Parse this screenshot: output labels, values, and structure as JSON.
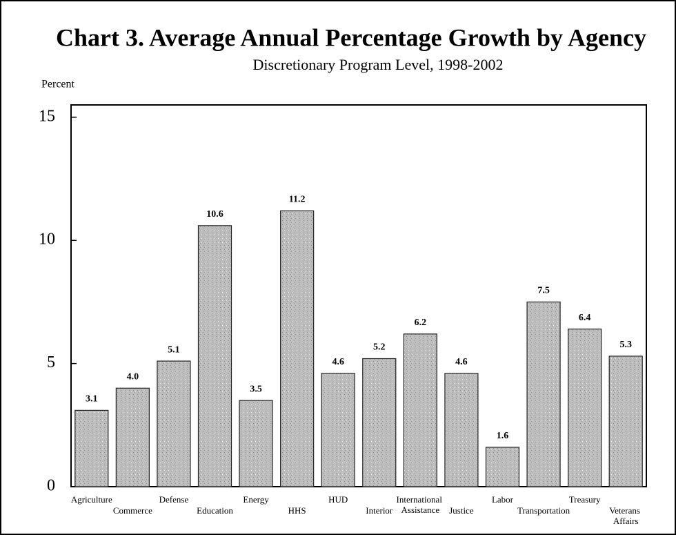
{
  "chart_data": {
    "type": "bar",
    "title": "Chart 3.  Average Annual Percentage Growth by Agency",
    "subtitle": "Discretionary Program Level, 1998-2002",
    "y_axis_label": "Percent",
    "categories": [
      "Agriculture",
      "Commerce",
      "Defense",
      "Education",
      "Energy",
      "HHS",
      "HUD",
      "Interior",
      "International Assistance",
      "Justice",
      "Labor",
      "Transportation",
      "Treasury",
      "Veterans Affairs"
    ],
    "values": [
      3.1,
      4.0,
      5.1,
      10.6,
      3.5,
      11.2,
      4.6,
      5.2,
      6.2,
      4.6,
      1.6,
      7.5,
      6.4,
      5.3
    ],
    "value_labels": [
      "3.1",
      "4.0",
      "5.1",
      "10.6",
      "3.5",
      "11.2",
      "4.6",
      "5.2",
      "6.2",
      "4.6",
      "1.6",
      "7.5",
      "6.4",
      "5.3"
    ],
    "color": "#b9b9b9",
    "ylim": [
      0,
      15.5
    ],
    "yticks": [
      0,
      5,
      10,
      15
    ],
    "grid": false
  }
}
